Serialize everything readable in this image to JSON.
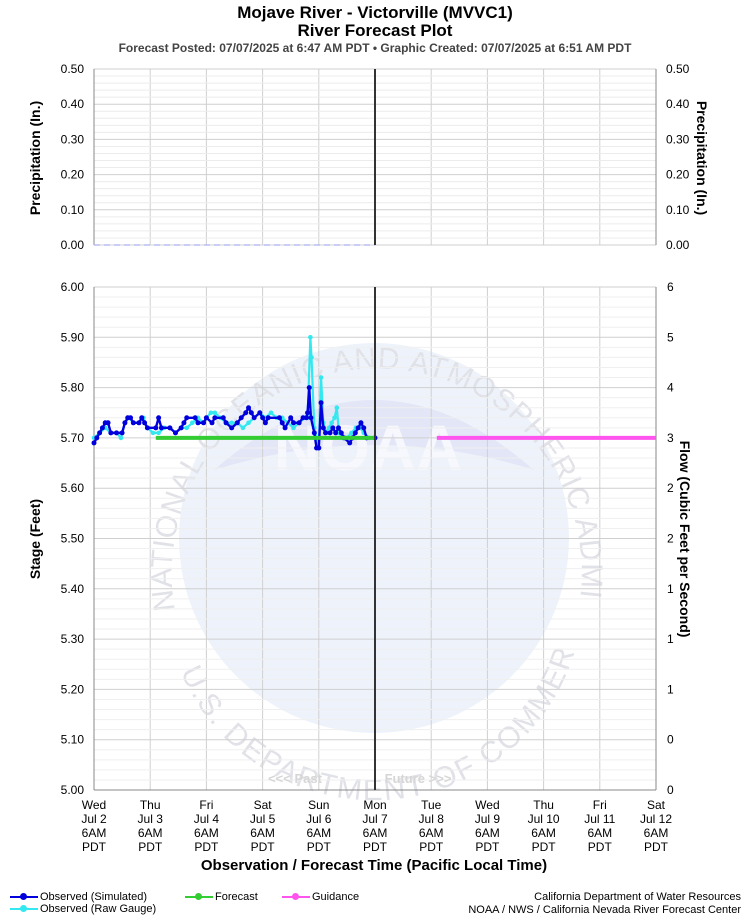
{
  "header": {
    "title": "Mojave River - Victorville (MVVC1)",
    "subtitle": "River Forecast Plot",
    "posted_line": "Forecast Posted: 07/07/2025 at 6:47 AM PDT  •  Graphic Created: 07/07/2025 at 6:51 AM PDT"
  },
  "chart_data": [
    {
      "type": "line",
      "name": "precipitation",
      "ylabel_left": "Precipitation (In.)",
      "ylabel_right": "Precipitation (In.)",
      "ylim": [
        0,
        0.5
      ],
      "yticks": [
        "0.00",
        "0.10",
        "0.20",
        "0.30",
        "0.40",
        "0.50"
      ],
      "yticks_right": [
        "0.00",
        "0.10",
        "0.20",
        "0.30",
        "0.40",
        "0.50"
      ],
      "grid": true,
      "series": [
        {
          "values": [
            [
              0,
              0
            ],
            [
              5,
              0
            ]
          ],
          "color": "#aab0f0",
          "dashed": true
        }
      ]
    },
    {
      "type": "line",
      "name": "stage",
      "xlabel": "Observation / Forecast Time (Pacific Local Time)",
      "ylabel_left": "Stage (Feet)",
      "ylabel_right": "Flow (Cubic Feet per Second)",
      "ylim": [
        5.0,
        6.0
      ],
      "yticks": [
        "5.00",
        "5.10",
        "5.20",
        "5.30",
        "5.40",
        "5.50",
        "5.60",
        "5.70",
        "5.80",
        "5.90",
        "6.00"
      ],
      "yticks_right": [
        "0",
        "0",
        "1",
        "1",
        "1",
        "2",
        "2",
        "3",
        "4",
        "5",
        "6"
      ],
      "x_categories": [
        [
          "Wed",
          "Jul 2",
          "6AM",
          "PDT"
        ],
        [
          "Thu",
          "Jul 3",
          "6AM",
          "PDT"
        ],
        [
          "Fri",
          "Jul 4",
          "6AM",
          "PDT"
        ],
        [
          "Sat",
          "Jul 5",
          "6AM",
          "PDT"
        ],
        [
          "Sun",
          "Jul 6",
          "6AM",
          "PDT"
        ],
        [
          "Mon",
          "Jul 7",
          "6AM",
          "PDT"
        ],
        [
          "Tue",
          "Jul 8",
          "6AM",
          "PDT"
        ],
        [
          "Wed",
          "Jul 9",
          "6AM",
          "PDT"
        ],
        [
          "Thu",
          "Jul 10",
          "6AM",
          "PDT"
        ],
        [
          "Fri",
          "Jul 11",
          "6AM",
          "PDT"
        ],
        [
          "Sat",
          "Jul 12",
          "6AM",
          "PDT"
        ]
      ],
      "x_unit": "days since Wed Jul 2 6AM PDT",
      "now": 5.0,
      "past_label": "<<< Past",
      "future_label": "Future >>>",
      "grid": true,
      "series": [
        {
          "name": "Observed (Raw Gauge)",
          "color": "#33e8f0",
          "values": [
            [
              0.0,
              5.7
            ],
            [
              0.1,
              5.71
            ],
            [
              0.2,
              5.72
            ],
            [
              0.3,
              5.71
            ],
            [
              0.4,
              5.71
            ],
            [
              0.48,
              5.7
            ],
            [
              0.55,
              5.73
            ],
            [
              0.62,
              5.74
            ],
            [
              0.7,
              5.73
            ],
            [
              0.8,
              5.73
            ],
            [
              0.88,
              5.74
            ],
            [
              0.95,
              5.72
            ],
            [
              1.05,
              5.71
            ],
            [
              1.15,
              5.71
            ],
            [
              1.25,
              5.72
            ],
            [
              1.35,
              5.72
            ],
            [
              1.45,
              5.71
            ],
            [
              1.55,
              5.72
            ],
            [
              1.65,
              5.72
            ],
            [
              1.75,
              5.73
            ],
            [
              1.85,
              5.74
            ],
            [
              1.95,
              5.73
            ],
            [
              2.0,
              5.74
            ],
            [
              2.08,
              5.75
            ],
            [
              2.15,
              5.75
            ],
            [
              2.25,
              5.74
            ],
            [
              2.35,
              5.73
            ],
            [
              2.45,
              5.73
            ],
            [
              2.55,
              5.73
            ],
            [
              2.65,
              5.72
            ],
            [
              2.75,
              5.73
            ],
            [
              2.85,
              5.74
            ],
            [
              2.95,
              5.75
            ],
            [
              3.05,
              5.74
            ],
            [
              3.15,
              5.75
            ],
            [
              3.25,
              5.74
            ],
            [
              3.35,
              5.74
            ],
            [
              3.45,
              5.73
            ],
            [
              3.55,
              5.72
            ],
            [
              3.65,
              5.73
            ],
            [
              3.75,
              5.74
            ],
            [
              3.8,
              5.74
            ],
            [
              3.85,
              5.9
            ],
            [
              3.87,
              5.86
            ],
            [
              3.92,
              5.72
            ],
            [
              3.96,
              5.7
            ],
            [
              4.0,
              5.68
            ],
            [
              4.04,
              5.82
            ],
            [
              4.08,
              5.73
            ],
            [
              4.13,
              5.71
            ],
            [
              4.18,
              5.72
            ],
            [
              4.23,
              5.73
            ],
            [
              4.28,
              5.74
            ],
            [
              4.32,
              5.76
            ],
            [
              4.36,
              5.71
            ],
            [
              4.42,
              5.7
            ],
            [
              4.5,
              5.7
            ],
            [
              4.58,
              5.71
            ],
            [
              4.66,
              5.72
            ],
            [
              4.74,
              5.72
            ],
            [
              4.8,
              5.71
            ],
            [
              4.9,
              5.7
            ],
            [
              5.0,
              5.7
            ]
          ]
        },
        {
          "name": "Observed (Simulated)",
          "color": "#0000dd",
          "values": [
            [
              0.0,
              5.69
            ],
            [
              0.05,
              5.7
            ],
            [
              0.1,
              5.71
            ],
            [
              0.15,
              5.72
            ],
            [
              0.2,
              5.73
            ],
            [
              0.25,
              5.73
            ],
            [
              0.3,
              5.71
            ],
            [
              0.4,
              5.71
            ],
            [
              0.5,
              5.71
            ],
            [
              0.55,
              5.73
            ],
            [
              0.6,
              5.74
            ],
            [
              0.65,
              5.74
            ],
            [
              0.7,
              5.73
            ],
            [
              0.8,
              5.73
            ],
            [
              0.85,
              5.74
            ],
            [
              0.9,
              5.73
            ],
            [
              0.95,
              5.72
            ],
            [
              1.1,
              5.72
            ],
            [
              1.15,
              5.74
            ],
            [
              1.2,
              5.72
            ],
            [
              1.35,
              5.72
            ],
            [
              1.45,
              5.71
            ],
            [
              1.55,
              5.72
            ],
            [
              1.6,
              5.73
            ],
            [
              1.65,
              5.74
            ],
            [
              1.8,
              5.74
            ],
            [
              1.85,
              5.73
            ],
            [
              1.95,
              5.73
            ],
            [
              2.0,
              5.74
            ],
            [
              2.1,
              5.73
            ],
            [
              2.15,
              5.74
            ],
            [
              2.3,
              5.74
            ],
            [
              2.35,
              5.73
            ],
            [
              2.45,
              5.72
            ],
            [
              2.55,
              5.73
            ],
            [
              2.62,
              5.74
            ],
            [
              2.7,
              5.75
            ],
            [
              2.75,
              5.76
            ],
            [
              2.8,
              5.75
            ],
            [
              2.85,
              5.74
            ],
            [
              2.95,
              5.75
            ],
            [
              3.0,
              5.74
            ],
            [
              3.05,
              5.73
            ],
            [
              3.1,
              5.74
            ],
            [
              3.3,
              5.74
            ],
            [
              3.35,
              5.73
            ],
            [
              3.4,
              5.72
            ],
            [
              3.5,
              5.74
            ],
            [
              3.55,
              5.73
            ],
            [
              3.65,
              5.73
            ],
            [
              3.72,
              5.74
            ],
            [
              3.78,
              5.74
            ],
            [
              3.8,
              5.75
            ],
            [
              3.83,
              5.8
            ],
            [
              3.86,
              5.74
            ],
            [
              3.92,
              5.71
            ],
            [
              3.96,
              5.68
            ],
            [
              4.0,
              5.68
            ],
            [
              4.04,
              5.77
            ],
            [
              4.08,
              5.72
            ],
            [
              4.12,
              5.71
            ],
            [
              4.2,
              5.71
            ],
            [
              4.25,
              5.72
            ],
            [
              4.3,
              5.71
            ],
            [
              4.35,
              5.72
            ],
            [
              4.4,
              5.71
            ],
            [
              4.45,
              5.7
            ],
            [
              4.55,
              5.69
            ],
            [
              4.6,
              5.7
            ],
            [
              4.65,
              5.71
            ],
            [
              4.7,
              5.72
            ],
            [
              4.75,
              5.73
            ],
            [
              4.8,
              5.72
            ],
            [
              4.85,
              5.7
            ],
            [
              5.0,
              5.7
            ]
          ]
        },
        {
          "name": "Forecast",
          "color": "#33cc33",
          "values": [
            [
              5.0,
              5.7
            ],
            [
              1.1,
              5.7
            ]
          ]
        },
        {
          "name": "Guidance",
          "color": "#ff55ee",
          "values": [
            [
              6.1,
              5.7
            ],
            [
              10.0,
              5.7
            ]
          ]
        }
      ]
    }
  ],
  "legend": {
    "items": [
      {
        "label": "Observed (Simulated)",
        "color": "#0000dd"
      },
      {
        "label": "Observed (Raw Gauge)",
        "color": "#33e8f0"
      },
      {
        "label": "Forecast",
        "color": "#33cc33"
      },
      {
        "label": "Guidance",
        "color": "#ff55ee"
      }
    ]
  },
  "credits": {
    "line1": "California Department of Water Resources",
    "line2": "NOAA / NWS / California Nevada River Forecast Center"
  },
  "watermark": {
    "center": "NOAA",
    "ring_top": "NATIONAL OCEANIC AND ATMOSPHERIC ADMINISTRATION",
    "ring_bottom": "U.S. DEPARTMENT OF COMMERCE"
  }
}
